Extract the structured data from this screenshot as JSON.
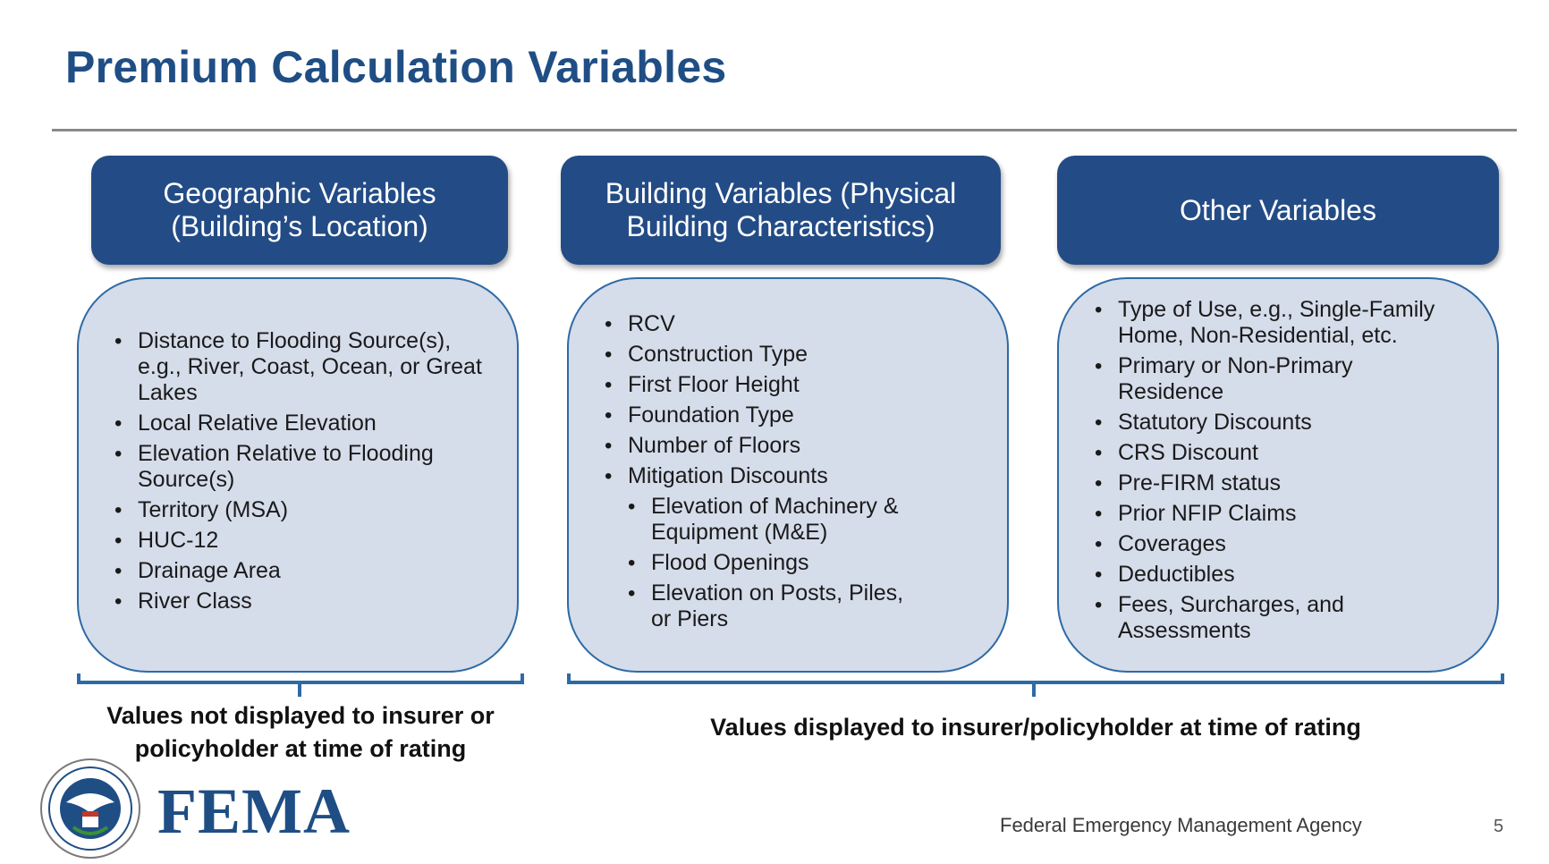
{
  "title": "Premium Calculation Variables",
  "columns": [
    {
      "header_line1": "Geographic Variables",
      "header_line2": "(Building’s Location)",
      "items": [
        "Distance to Flooding Source(s), e.g., River, Coast, Ocean, or Great Lakes",
        "Local Relative Elevation",
        "Elevation Relative to Flooding Source(s)",
        "Territory (MSA)",
        "HUC-12",
        "Drainage Area",
        "River Class"
      ]
    },
    {
      "header_line1": "Building Variables (Physical",
      "header_line2": "Building Characteristics)",
      "items": [
        "RCV",
        "Construction Type",
        "First Floor Height",
        "Foundation Type",
        "Number of Floors",
        "Mitigation Discounts"
      ],
      "sub_items": [
        "Elevation of Machinery & Equipment (M&E)",
        "Flood Openings",
        "Elevation on Posts, Piles, or Piers"
      ]
    },
    {
      "header_line1": "Other Variables",
      "items": [
        "Type of Use, e.g., Single-Family Home, Non-Residential, etc.",
        "Primary or Non-Primary Residence",
        "Statutory Discounts",
        "CRS Discount",
        "Pre-FIRM status",
        "Prior NFIP Claims",
        "Coverages",
        "Deductibles",
        "Fees, Surcharges, and Assessments"
      ]
    }
  ],
  "captions": {
    "left_line1": "Values not displayed to insurer or",
    "left_line2": "policyholder at time of rating",
    "right": "Values displayed to insurer/policyholder at time of rating"
  },
  "footer": {
    "logo_text": "FEMA",
    "agency": "Federal Emergency Management Agency",
    "page_number": "5"
  },
  "colors": {
    "title": "#1f4e85",
    "header_fill": "#234c86",
    "body_fill": "#d5dcea",
    "outline": "#2e6aa5"
  }
}
